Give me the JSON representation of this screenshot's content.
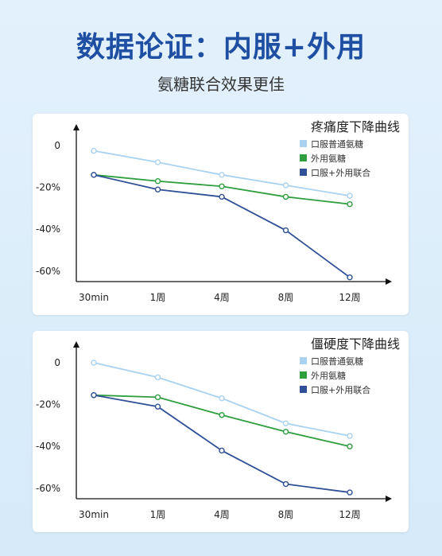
{
  "header": {
    "title": "数据论证：内服+外用",
    "subtitle": "氨糖联合效果更佳"
  },
  "colors": {
    "oral": "#a9d2f0",
    "topical": "#2e9e3f",
    "combined": "#2f4f96",
    "title": "#1f4fa3"
  },
  "chart_data": [
    {
      "type": "line",
      "title": "疼痛度下降曲线",
      "categories": [
        "30min",
        "1周",
        "4周",
        "8周",
        "12周"
      ],
      "y_ticks": [
        "0",
        "-20%",
        "-40%",
        "-60%"
      ],
      "ylim": [
        -60,
        0
      ],
      "series": [
        {
          "name": "口服普通氨糖",
          "color": "#a9d2f0",
          "values": [
            -2.5,
            -8,
            -14,
            -19,
            -24
          ]
        },
        {
          "name": "外用氨糖",
          "color": "#2e9e3f",
          "values": [
            -14,
            -17,
            -19.5,
            -24.5,
            -28
          ]
        },
        {
          "name": "口服+外用联合",
          "color": "#2f4f96",
          "values": [
            -14,
            -21,
            -24.5,
            -40.5,
            -63
          ]
        }
      ],
      "legend": "top-right",
      "grid": false
    },
    {
      "type": "line",
      "title": "僵硬度下降曲线",
      "categories": [
        "30min",
        "1周",
        "4周",
        "8周",
        "12周"
      ],
      "y_ticks": [
        "0",
        "-20%",
        "-40%",
        "-60%"
      ],
      "ylim": [
        -60,
        0
      ],
      "series": [
        {
          "name": "口服普通氨糖",
          "color": "#a9d2f0",
          "values": [
            0,
            -7,
            -17,
            -29,
            -35
          ]
        },
        {
          "name": "外用氨糖",
          "color": "#2e9e3f",
          "values": [
            -15.5,
            -16.5,
            -25,
            -33,
            -40
          ]
        },
        {
          "name": "口服+外用联合",
          "color": "#2f4f96",
          "values": [
            -15.5,
            -21,
            -42,
            -58,
            -62
          ]
        }
      ],
      "legend": "top-right",
      "grid": false
    }
  ]
}
